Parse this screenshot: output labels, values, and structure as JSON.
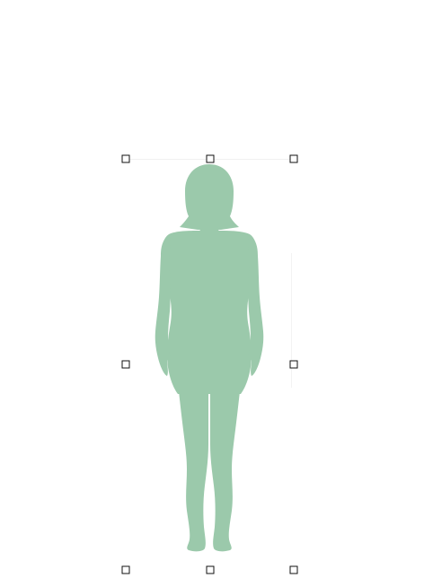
{
  "document": {
    "background": "#ffffff"
  },
  "image": {
    "icon": "female-body-silhouette-icon",
    "fill": "#9bc9ab",
    "selected": true
  },
  "selection": {
    "handle_fill": "#ffffff",
    "handle_border": "#111111",
    "handles": [
      "top-left",
      "top-middle",
      "top-right",
      "middle-left",
      "middle-right",
      "bottom-left",
      "bottom-middle",
      "bottom-right"
    ]
  }
}
